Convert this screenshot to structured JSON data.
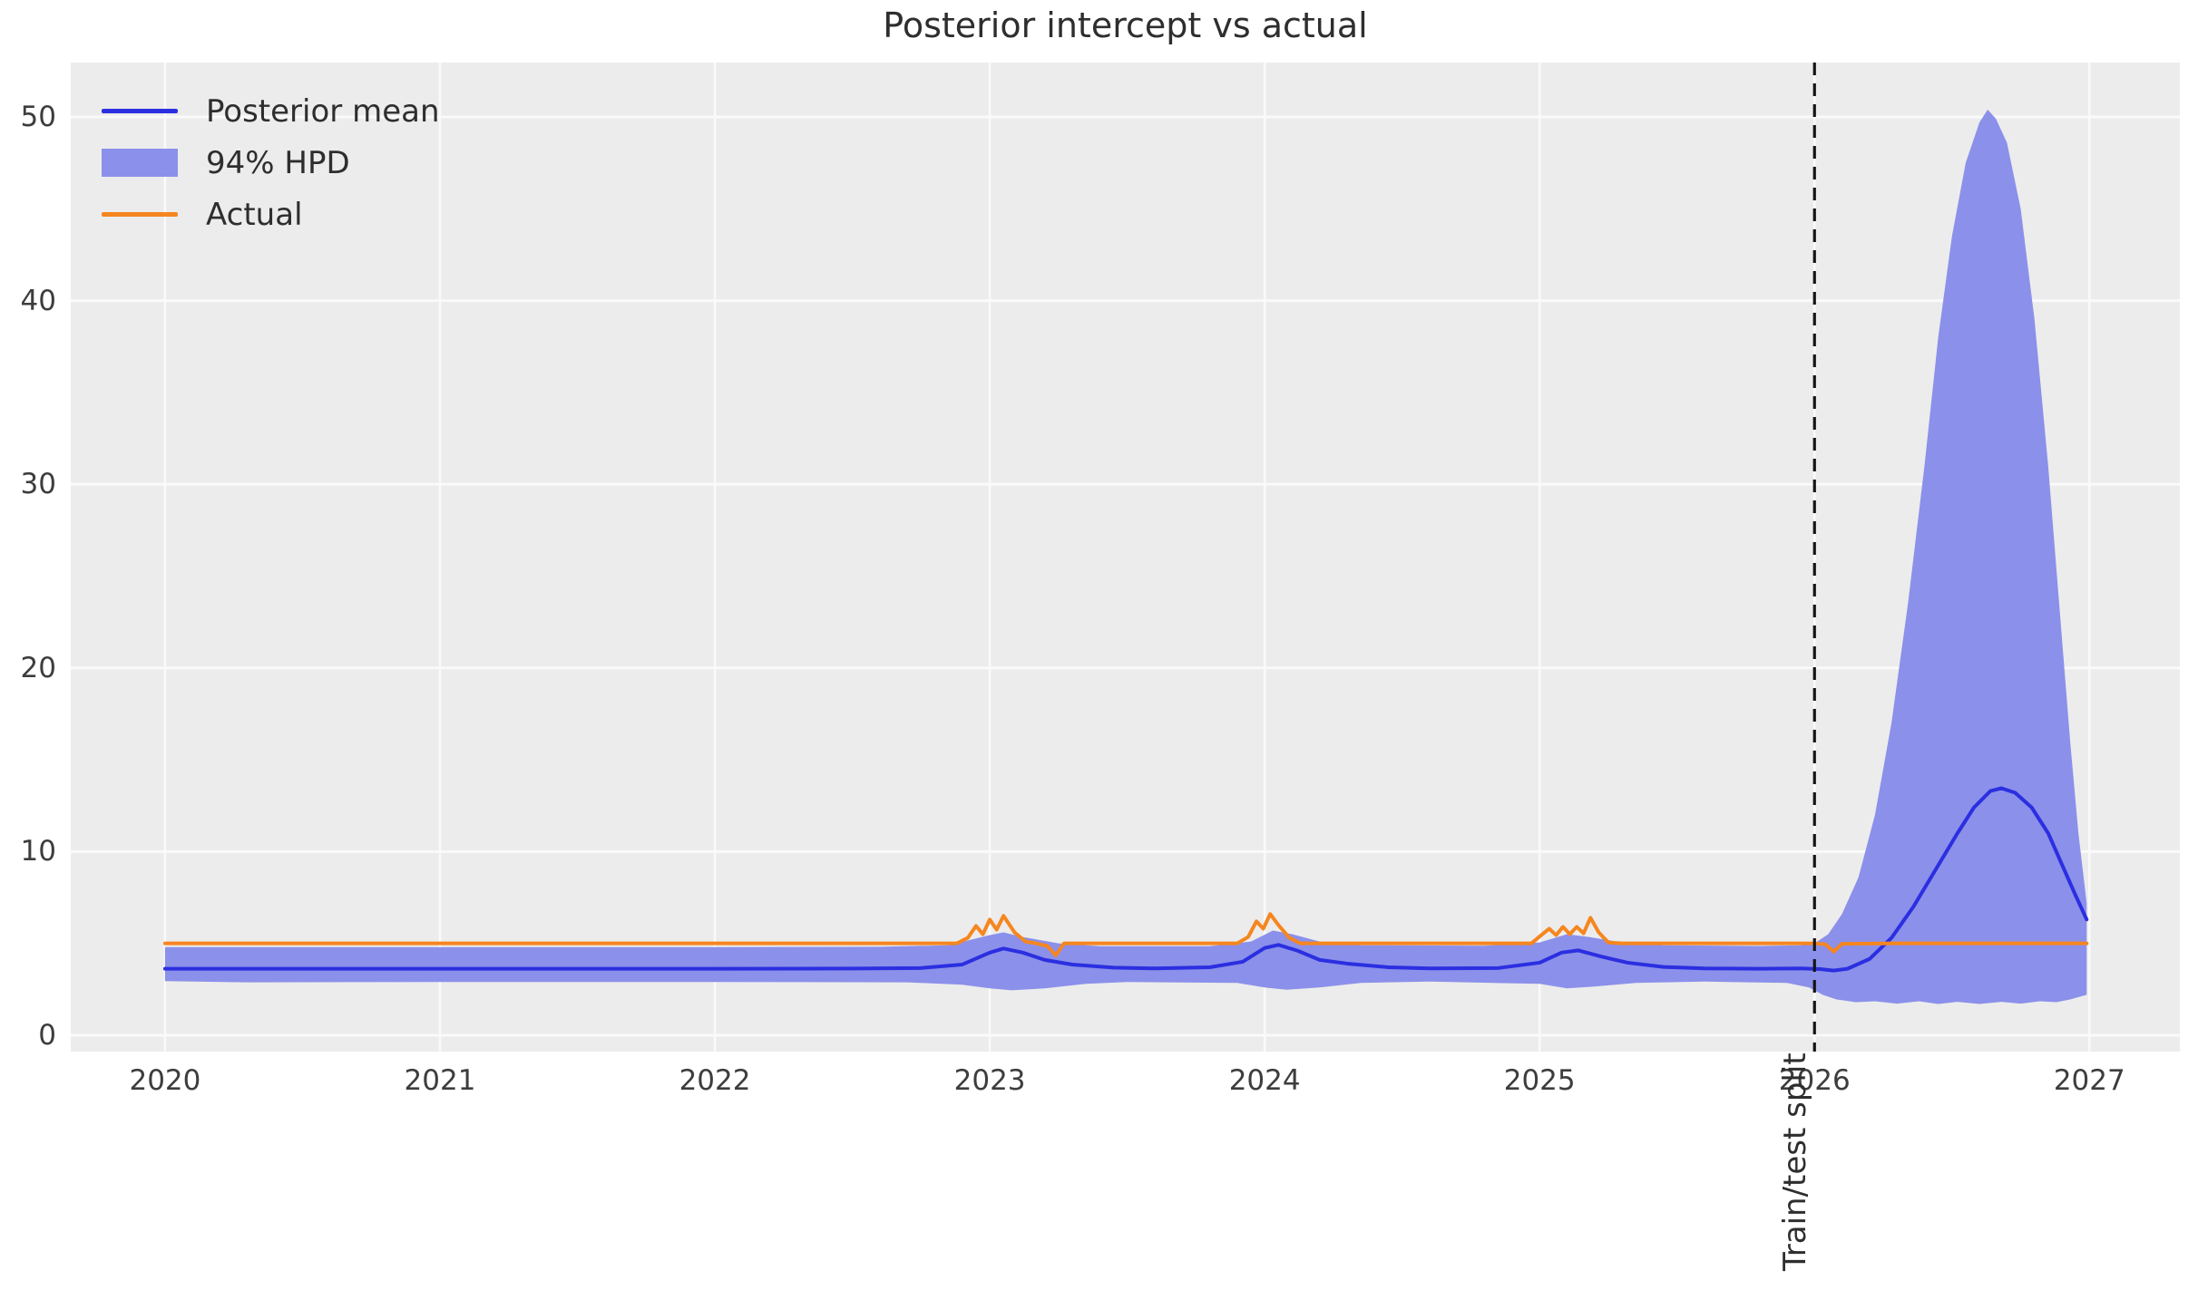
{
  "chart_data": {
    "type": "line",
    "title": "Posterior intercept vs actual",
    "xlabel": "",
    "ylabel": "",
    "grid": true,
    "legend_position": "upper left",
    "x_ticks": [
      2020,
      2021,
      2022,
      2023,
      2024,
      2025,
      2026,
      2027
    ],
    "y_ticks": [
      0,
      10,
      20,
      30,
      40,
      50
    ],
    "x_range": [
      2019.657,
      2027.329
    ],
    "y_range": [
      -0.89,
      52.96
    ],
    "annotation": {
      "label": "Train/test split",
      "x": 2026.0,
      "style": "dashed-vertical-line"
    },
    "style": {
      "plot_bg": "#ececec",
      "grid_color": "#fafafa",
      "tick_color": "#3d3d3d",
      "text_color": "#2e2e2e",
      "split_line_color": "#141414"
    },
    "series": [
      {
        "name": "Posterior mean",
        "type": "line",
        "color": "#2b2fe0",
        "points": [
          [
            2020.0,
            3.62
          ],
          [
            2020.5,
            3.62
          ],
          [
            2021.0,
            3.62
          ],
          [
            2021.5,
            3.62
          ],
          [
            2022.0,
            3.62
          ],
          [
            2022.5,
            3.63
          ],
          [
            2022.75,
            3.66
          ],
          [
            2022.9,
            3.85
          ],
          [
            2023.0,
            4.5
          ],
          [
            2023.05,
            4.72
          ],
          [
            2023.12,
            4.5
          ],
          [
            2023.2,
            4.1
          ],
          [
            2023.3,
            3.85
          ],
          [
            2023.45,
            3.68
          ],
          [
            2023.6,
            3.64
          ],
          [
            2023.8,
            3.7
          ],
          [
            2023.92,
            4.0
          ],
          [
            2024.0,
            4.75
          ],
          [
            2024.05,
            4.92
          ],
          [
            2024.12,
            4.6
          ],
          [
            2024.2,
            4.1
          ],
          [
            2024.3,
            3.9
          ],
          [
            2024.45,
            3.7
          ],
          [
            2024.6,
            3.64
          ],
          [
            2024.85,
            3.66
          ],
          [
            2025.0,
            3.95
          ],
          [
            2025.08,
            4.5
          ],
          [
            2025.14,
            4.62
          ],
          [
            2025.22,
            4.3
          ],
          [
            2025.32,
            3.95
          ],
          [
            2025.45,
            3.72
          ],
          [
            2025.6,
            3.64
          ],
          [
            2025.8,
            3.62
          ],
          [
            2025.95,
            3.64
          ],
          [
            2026.02,
            3.6
          ],
          [
            2026.07,
            3.52
          ],
          [
            2026.12,
            3.62
          ],
          [
            2026.2,
            4.15
          ],
          [
            2026.28,
            5.3
          ],
          [
            2026.36,
            7.0
          ],
          [
            2026.44,
            9.0
          ],
          [
            2026.52,
            11.0
          ],
          [
            2026.58,
            12.4
          ],
          [
            2026.64,
            13.3
          ],
          [
            2026.68,
            13.45
          ],
          [
            2026.73,
            13.2
          ],
          [
            2026.79,
            12.4
          ],
          [
            2026.85,
            11.0
          ],
          [
            2026.9,
            9.3
          ],
          [
            2026.95,
            7.6
          ],
          [
            2026.99,
            6.3
          ]
        ]
      },
      {
        "name": "94% HPD",
        "type": "band",
        "color": "#8b90ea",
        "upper": [
          [
            2020.0,
            4.8
          ],
          [
            2021.0,
            4.8
          ],
          [
            2022.0,
            4.8
          ],
          [
            2022.6,
            4.82
          ],
          [
            2022.85,
            4.9
          ],
          [
            2023.0,
            5.45
          ],
          [
            2023.05,
            5.6
          ],
          [
            2023.12,
            5.35
          ],
          [
            2023.25,
            5.0
          ],
          [
            2023.4,
            4.85
          ],
          [
            2023.8,
            4.85
          ],
          [
            2023.95,
            5.1
          ],
          [
            2024.03,
            5.7
          ],
          [
            2024.1,
            5.5
          ],
          [
            2024.2,
            5.1
          ],
          [
            2024.35,
            4.9
          ],
          [
            2024.8,
            4.87
          ],
          [
            2025.0,
            5.05
          ],
          [
            2025.1,
            5.5
          ],
          [
            2025.18,
            5.35
          ],
          [
            2025.3,
            5.05
          ],
          [
            2025.45,
            4.9
          ],
          [
            2025.8,
            4.86
          ],
          [
            2025.95,
            4.9
          ],
          [
            2026.0,
            5.0
          ],
          [
            2026.05,
            5.5
          ],
          [
            2026.1,
            6.6
          ],
          [
            2026.16,
            8.6
          ],
          [
            2026.22,
            12.0
          ],
          [
            2026.28,
            17.0
          ],
          [
            2026.34,
            23.5
          ],
          [
            2026.4,
            31.0
          ],
          [
            2026.45,
            38.0
          ],
          [
            2026.5,
            43.5
          ],
          [
            2026.55,
            47.5
          ],
          [
            2026.6,
            49.7
          ],
          [
            2026.63,
            50.4
          ],
          [
            2026.66,
            49.9
          ],
          [
            2026.7,
            48.6
          ],
          [
            2026.75,
            45.0
          ],
          [
            2026.8,
            39.0
          ],
          [
            2026.85,
            31.0
          ],
          [
            2026.89,
            23.5
          ],
          [
            2026.93,
            16.0
          ],
          [
            2026.96,
            11.0
          ],
          [
            2026.99,
            7.2
          ]
        ],
        "lower": [
          [
            2020.0,
            2.95
          ],
          [
            2020.3,
            2.88
          ],
          [
            2021.0,
            2.9
          ],
          [
            2022.0,
            2.9
          ],
          [
            2022.7,
            2.88
          ],
          [
            2022.9,
            2.75
          ],
          [
            2023.0,
            2.55
          ],
          [
            2023.08,
            2.45
          ],
          [
            2023.2,
            2.55
          ],
          [
            2023.35,
            2.8
          ],
          [
            2023.5,
            2.9
          ],
          [
            2023.9,
            2.85
          ],
          [
            2024.0,
            2.6
          ],
          [
            2024.08,
            2.48
          ],
          [
            2024.2,
            2.6
          ],
          [
            2024.35,
            2.85
          ],
          [
            2024.6,
            2.92
          ],
          [
            2025.0,
            2.8
          ],
          [
            2025.1,
            2.55
          ],
          [
            2025.2,
            2.65
          ],
          [
            2025.35,
            2.85
          ],
          [
            2025.6,
            2.92
          ],
          [
            2025.9,
            2.85
          ],
          [
            2025.98,
            2.6
          ],
          [
            2026.03,
            2.2
          ],
          [
            2026.08,
            1.95
          ],
          [
            2026.15,
            1.8
          ],
          [
            2026.22,
            1.85
          ],
          [
            2026.3,
            1.72
          ],
          [
            2026.38,
            1.85
          ],
          [
            2026.45,
            1.7
          ],
          [
            2026.52,
            1.82
          ],
          [
            2026.6,
            1.7
          ],
          [
            2026.68,
            1.82
          ],
          [
            2026.75,
            1.72
          ],
          [
            2026.82,
            1.85
          ],
          [
            2026.88,
            1.8
          ],
          [
            2026.93,
            1.95
          ],
          [
            2026.99,
            2.2
          ]
        ]
      },
      {
        "name": "Actual",
        "type": "line",
        "color": "#f6861f",
        "points": [
          [
            2020.0,
            5
          ],
          [
            2021.0,
            5
          ],
          [
            2022.0,
            5
          ],
          [
            2022.88,
            5
          ],
          [
            2022.92,
            5.3
          ],
          [
            2022.95,
            5.95
          ],
          [
            2022.975,
            5.5
          ],
          [
            2023.0,
            6.3
          ],
          [
            2023.025,
            5.75
          ],
          [
            2023.05,
            6.5
          ],
          [
            2023.09,
            5.6
          ],
          [
            2023.13,
            5.1
          ],
          [
            2023.17,
            5.0
          ],
          [
            2023.21,
            4.85
          ],
          [
            2023.24,
            4.35
          ],
          [
            2023.27,
            5.0
          ],
          [
            2023.5,
            5
          ],
          [
            2023.9,
            5
          ],
          [
            2023.94,
            5.35
          ],
          [
            2023.97,
            6.2
          ],
          [
            2023.995,
            5.8
          ],
          [
            2024.02,
            6.6
          ],
          [
            2024.05,
            6.0
          ],
          [
            2024.09,
            5.3
          ],
          [
            2024.13,
            5.0
          ],
          [
            2024.5,
            5
          ],
          [
            2024.97,
            5
          ],
          [
            2025.01,
            5.5
          ],
          [
            2025.035,
            5.8
          ],
          [
            2025.06,
            5.45
          ],
          [
            2025.085,
            5.9
          ],
          [
            2025.11,
            5.5
          ],
          [
            2025.135,
            5.9
          ],
          [
            2025.16,
            5.55
          ],
          [
            2025.185,
            6.4
          ],
          [
            2025.215,
            5.6
          ],
          [
            2025.25,
            5.05
          ],
          [
            2025.3,
            5.0
          ],
          [
            2025.7,
            5
          ],
          [
            2026.0,
            5
          ],
          [
            2026.04,
            4.95
          ],
          [
            2026.07,
            4.55
          ],
          [
            2026.1,
            4.98
          ],
          [
            2026.3,
            5
          ],
          [
            2026.99,
            5
          ]
        ]
      }
    ]
  }
}
